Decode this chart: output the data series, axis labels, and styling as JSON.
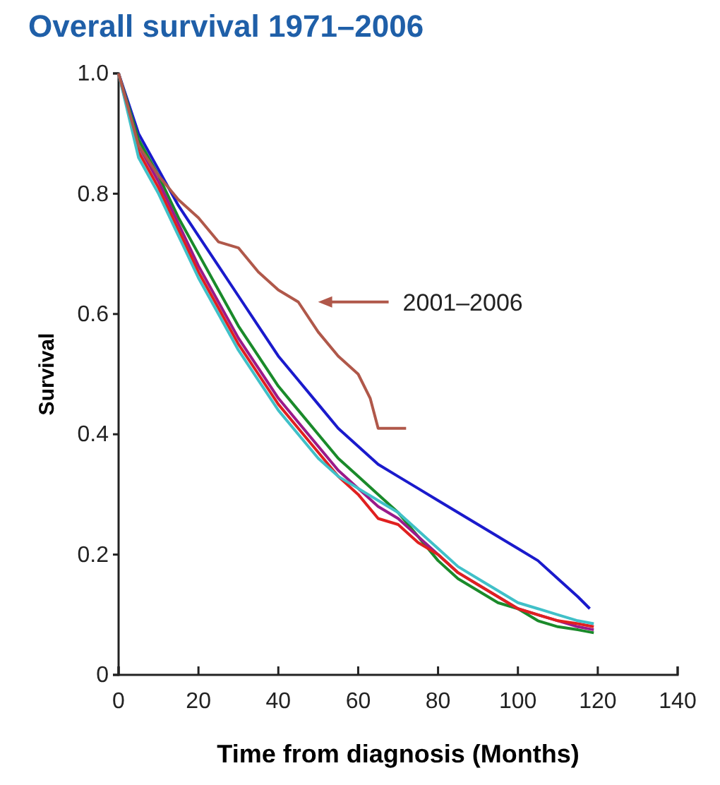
{
  "chart_data": {
    "type": "line",
    "title": "Overall survival 1971–2006",
    "xlabel": "Time from diagnosis (Months)",
    "ylabel": "Survival",
    "xlim": [
      0,
      140
    ],
    "xticks": [
      0,
      20,
      40,
      60,
      80,
      100,
      120,
      140
    ],
    "ylim": [
      0,
      1
    ],
    "yticks": [
      {
        "value": 0,
        "label": "0"
      },
      0.2,
      0.4,
      0.6,
      0.8,
      {
        "value": 1,
        "label": "1.0"
      }
    ],
    "grid": false,
    "legend": "right",
    "series": [
      {
        "name": "2001–2006",
        "color": "#b0584a",
        "x": [
          0,
          5,
          10,
          15,
          20,
          25,
          30,
          35,
          40,
          45,
          50,
          55,
          60,
          63,
          65,
          72
        ],
        "values": [
          1,
          0.88,
          0.83,
          0.79,
          0.76,
          0.72,
          0.71,
          0.67,
          0.64,
          0.62,
          0.57,
          0.53,
          0.5,
          0.46,
          0.41,
          0.41
        ]
      },
      {
        "color": "#1a1acc",
        "x": [
          0,
          5,
          10,
          15,
          20,
          25,
          30,
          35,
          40,
          45,
          50,
          55,
          60,
          65,
          70,
          75,
          80,
          85,
          90,
          95,
          100,
          105,
          110,
          115,
          118
        ],
        "values": [
          1,
          0.9,
          0.84,
          0.78,
          0.73,
          0.68,
          0.63,
          0.58,
          0.53,
          0.49,
          0.45,
          0.41,
          0.38,
          0.35,
          0.33,
          0.31,
          0.29,
          0.27,
          0.25,
          0.23,
          0.21,
          0.19,
          0.16,
          0.13,
          0.11
        ]
      },
      {
        "color": "#1a8a2a",
        "x": [
          0,
          5,
          10,
          15,
          20,
          25,
          30,
          35,
          40,
          45,
          50,
          55,
          60,
          65,
          70,
          75,
          80,
          85,
          90,
          95,
          100,
          105,
          110,
          115,
          119
        ],
        "values": [
          1,
          0.89,
          0.83,
          0.76,
          0.7,
          0.64,
          0.58,
          0.53,
          0.48,
          0.44,
          0.4,
          0.36,
          0.33,
          0.3,
          0.27,
          0.23,
          0.19,
          0.16,
          0.14,
          0.12,
          0.11,
          0.09,
          0.08,
          0.075,
          0.07
        ]
      },
      {
        "color": "#9a1a8a",
        "x": [
          0,
          5,
          10,
          15,
          20,
          25,
          30,
          35,
          40,
          45,
          50,
          55,
          60,
          65,
          70,
          75,
          80,
          85,
          90,
          95,
          100,
          105,
          110,
          115,
          119
        ],
        "values": [
          1,
          0.88,
          0.82,
          0.75,
          0.68,
          0.62,
          0.56,
          0.51,
          0.46,
          0.42,
          0.38,
          0.34,
          0.31,
          0.28,
          0.26,
          0.23,
          0.2,
          0.17,
          0.15,
          0.13,
          0.11,
          0.1,
          0.09,
          0.08,
          0.075
        ]
      },
      {
        "color": "#e02020",
        "x": [
          0,
          5,
          10,
          15,
          20,
          25,
          30,
          35,
          40,
          45,
          50,
          55,
          60,
          65,
          70,
          75,
          80,
          85,
          90,
          95,
          100,
          105,
          110,
          115,
          119
        ],
        "values": [
          1,
          0.87,
          0.81,
          0.74,
          0.67,
          0.61,
          0.55,
          0.5,
          0.45,
          0.41,
          0.37,
          0.33,
          0.3,
          0.26,
          0.25,
          0.22,
          0.2,
          0.17,
          0.15,
          0.13,
          0.11,
          0.1,
          0.09,
          0.085,
          0.08
        ]
      },
      {
        "color": "#40c0c8",
        "x": [
          0,
          5,
          10,
          15,
          20,
          25,
          30,
          35,
          40,
          45,
          50,
          55,
          60,
          65,
          70,
          75,
          80,
          85,
          90,
          95,
          100,
          105,
          110,
          115,
          119
        ],
        "values": [
          1,
          0.86,
          0.8,
          0.73,
          0.66,
          0.6,
          0.54,
          0.49,
          0.44,
          0.4,
          0.36,
          0.33,
          0.31,
          0.29,
          0.27,
          0.24,
          0.21,
          0.18,
          0.16,
          0.14,
          0.12,
          0.11,
          0.1,
          0.09,
          0.085
        ]
      }
    ]
  }
}
